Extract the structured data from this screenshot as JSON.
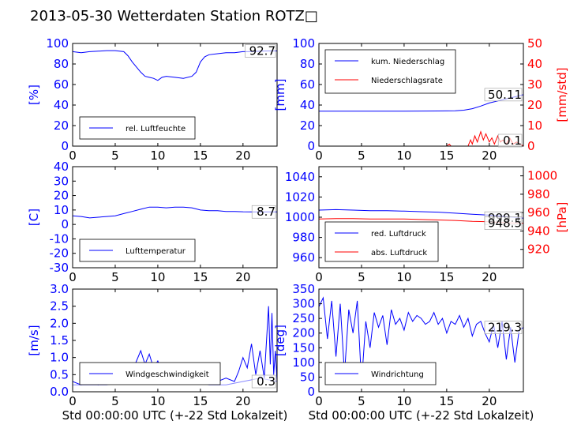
{
  "title": "2013-05-30 Wetterdaten Station ROTZ□",
  "x_label": "Std 00:00:00 UTC (+-22 Std Lokalzeit)",
  "colors": {
    "primary": "#0000ff",
    "secondary": "#ff0000",
    "light": "#8888ff"
  },
  "chart_data": [
    {
      "type": "line",
      "ylabel": "[%]",
      "xlim": [
        0,
        24
      ],
      "ylim": [
        0,
        100
      ],
      "xticks": [
        0,
        5,
        10,
        15,
        20
      ],
      "yticks": [
        0,
        20,
        40,
        60,
        80,
        100
      ],
      "legend": [
        "rel. Luftfeuchte"
      ],
      "legend_position": "lower-left",
      "last_value_label": "92.7",
      "series": [
        {
          "name": "rel. Luftfeuchte",
          "axis": "left",
          "color": "#0000ff",
          "x": [
            0,
            1,
            2,
            3,
            4,
            5,
            6,
            6.5,
            7,
            7.5,
            8,
            8.5,
            9,
            9.5,
            10,
            10.5,
            11,
            12,
            13,
            14,
            14.5,
            15,
            15.5,
            16,
            17,
            18,
            19,
            20,
            21,
            22,
            23,
            24
          ],
          "y": [
            92,
            91,
            92,
            92.5,
            93,
            93,
            92,
            88,
            82,
            77,
            72,
            68,
            67,
            66,
            64,
            67,
            68,
            67,
            66,
            68,
            72,
            82,
            87,
            89,
            90,
            91,
            91,
            92,
            92,
            92.5,
            92.7,
            92.7
          ]
        }
      ]
    },
    {
      "type": "line",
      "ylabel": "[mm]",
      "ylabel_right": "[mm/std]",
      "xlim": [
        0,
        24
      ],
      "ylim": [
        0,
        100
      ],
      "ylim_right": [
        0,
        50
      ],
      "xticks": [
        0,
        5,
        10,
        15,
        20
      ],
      "yticks": [
        0,
        20,
        40,
        60,
        80,
        100
      ],
      "yticks_right": [
        0,
        10,
        20,
        30,
        40,
        50
      ],
      "legend": [
        "kum. Niederschlag",
        "Niederschlagsrate"
      ],
      "legend_position": "upper-left",
      "value_labels": [
        "50.11",
        "0.1"
      ],
      "series": [
        {
          "name": "kum. Niederschlag",
          "axis": "left",
          "color": "#0000ff",
          "x": [
            0,
            5,
            10,
            14,
            16,
            17,
            18,
            19,
            20,
            21,
            22,
            23,
            24
          ],
          "y": [
            34,
            34,
            34,
            34.2,
            34.5,
            35,
            36.5,
            39,
            42,
            44,
            46,
            48,
            50.11
          ]
        },
        {
          "name": "Niederschlagsrate",
          "axis": "right",
          "color": "#ff0000",
          "x": [
            0,
            15,
            15.3,
            15.5,
            16,
            17.5,
            17.8,
            18,
            18.3,
            18.6,
            19,
            19.3,
            19.6,
            20,
            20.3,
            20.6,
            21,
            21.3,
            21.6,
            22,
            22.4,
            22.8,
            23.2,
            24
          ],
          "y": [
            0,
            0,
            1,
            0,
            0,
            0,
            3,
            1,
            5,
            2,
            7,
            3,
            6,
            2,
            4,
            1,
            5,
            2,
            3,
            1,
            4,
            1,
            2,
            0.1
          ]
        }
      ]
    },
    {
      "type": "line",
      "ylabel": "[C]",
      "xlim": [
        0,
        24
      ],
      "ylim": [
        -30,
        40
      ],
      "xticks": [
        0,
        5,
        10,
        15,
        20
      ],
      "yticks": [
        -30,
        -20,
        -10,
        0,
        10,
        20,
        30,
        40
      ],
      "legend": [
        "Lufttemperatur"
      ],
      "legend_position": "lower-left",
      "last_value_label": "8.7",
      "series": [
        {
          "name": "Lufttemperatur",
          "axis": "left",
          "color": "#0000ff",
          "x": [
            0,
            1,
            2,
            3,
            4,
            5,
            6,
            7,
            8,
            9,
            10,
            11,
            12,
            13,
            14,
            15,
            16,
            17,
            18,
            19,
            20,
            21,
            22,
            23,
            24
          ],
          "y": [
            6,
            5.5,
            4.5,
            5,
            5.5,
            6,
            7.5,
            9,
            10.5,
            12,
            12,
            11.5,
            12,
            12,
            11.5,
            10,
            9.5,
            9.5,
            9,
            9,
            8.8,
            8.7,
            8.7,
            8.7,
            8.7
          ]
        }
      ]
    },
    {
      "type": "line",
      "ylabel_right": "[hPa]",
      "xlim": [
        0,
        24
      ],
      "ylim": [
        950,
        1050
      ],
      "ylim_right": [
        900,
        1010
      ],
      "xticks": [
        0,
        5,
        10,
        15,
        20
      ],
      "yticks": [
        960,
        980,
        1000,
        1020,
        1040
      ],
      "yticks_right": [
        920,
        940,
        960,
        980,
        1000
      ],
      "legend": [
        "red. Luftdruck",
        "abs. Luftdruck"
      ],
      "legend_position": "lower-left",
      "value_labels": [
        "999.1",
        "948.5"
      ],
      "series": [
        {
          "name": "red. Luftdruck",
          "axis": "left",
          "color": "#0000ff",
          "x": [
            0,
            2,
            4,
            6,
            8,
            10,
            12,
            14,
            16,
            18,
            20,
            22,
            24
          ],
          "y": [
            1007,
            1007.5,
            1007,
            1006.5,
            1006.5,
            1006,
            1005.5,
            1005,
            1004,
            1003,
            1002,
            1000.5,
            999.1
          ]
        },
        {
          "name": "abs. Luftdruck",
          "axis": "right",
          "color": "#ff0000",
          "x": [
            0,
            2,
            4,
            6,
            8,
            10,
            12,
            14,
            16,
            18,
            20,
            22,
            24
          ],
          "y": [
            953,
            953.5,
            953.5,
            953,
            953,
            953,
            952.5,
            952,
            951.5,
            950.5,
            950,
            949,
            948.5
          ]
        }
      ]
    },
    {
      "type": "line",
      "ylabel": "[m/s]",
      "xlim": [
        0,
        24
      ],
      "ylim": [
        0,
        3.0
      ],
      "xticks": [
        0,
        5,
        10,
        15,
        20
      ],
      "yticks": [
        0.0,
        0.5,
        1.0,
        1.5,
        2.0,
        2.5,
        3.0
      ],
      "legend": [
        "Windgeschwindigkeit"
      ],
      "legend_position": "lower-left",
      "last_value_label": "0.3",
      "series": [
        {
          "name": "Windgeschwindigkeit",
          "axis": "left",
          "color": "#0000ff",
          "x": [
            0,
            1,
            2,
            3,
            4,
            5,
            6,
            7,
            7.5,
            8,
            8.5,
            9,
            9.5,
            10,
            10.5,
            11,
            12,
            13,
            14,
            15,
            16,
            17,
            18,
            19,
            19.5,
            20,
            20.5,
            21,
            21.5,
            22,
            22.5,
            23,
            23.2,
            23.4,
            23.6,
            23.8,
            24
          ],
          "y": [
            0.3,
            0.2,
            0.3,
            0.2,
            0.3,
            0.3,
            0.4,
            0.6,
            0.9,
            1.2,
            0.8,
            1.1,
            0.7,
            0.9,
            0.6,
            0.8,
            0.7,
            0.8,
            0.6,
            0.5,
            0.4,
            0.3,
            0.4,
            0.3,
            0.6,
            1.0,
            0.7,
            1.4,
            0.5,
            1.2,
            0.4,
            2.5,
            0.8,
            2.3,
            0.5,
            1.2,
            0.3
          ]
        },
        {
          "axis": "left",
          "color": "#8888ff",
          "x": [
            0,
            2,
            4,
            6,
            7,
            8,
            9,
            10,
            11,
            12,
            13,
            14,
            15,
            16,
            18,
            20,
            22,
            24
          ],
          "y": [
            0.2,
            0.2,
            0.2,
            0.3,
            0.5,
            0.8,
            0.8,
            0.7,
            0.6,
            0.6,
            0.6,
            0.5,
            0.3,
            0.2,
            0.2,
            0.3,
            0.4,
            0.3
          ]
        }
      ]
    },
    {
      "type": "line",
      "ylabel": "[deg]",
      "xlim": [
        0,
        24
      ],
      "ylim": [
        0,
        350
      ],
      "xticks": [
        0,
        5,
        10,
        15,
        20
      ],
      "yticks": [
        0,
        50,
        100,
        150,
        200,
        250,
        300,
        350
      ],
      "legend": [
        "Windrichtung"
      ],
      "legend_position": "lower-left",
      "last_value_label": "219.3",
      "series": [
        {
          "name": "Windrichtung",
          "axis": "left",
          "color": "#0000ff",
          "x": [
            0,
            0.5,
            1,
            1.5,
            2,
            2.5,
            3,
            3.5,
            4,
            4.5,
            5,
            5.5,
            6,
            6.5,
            7,
            7.5,
            8,
            8.5,
            9,
            9.5,
            10,
            10.5,
            11,
            11.5,
            12,
            12.5,
            13,
            13.5,
            14,
            14.5,
            15,
            15.5,
            16,
            16.5,
            17,
            17.5,
            18,
            18.5,
            19,
            19.5,
            20,
            20.5,
            21,
            21.5,
            22,
            22.5,
            23,
            23.5,
            24
          ],
          "y": [
            290,
            320,
            180,
            310,
            120,
            300,
            60,
            280,
            200,
            310,
            30,
            240,
            150,
            270,
            220,
            260,
            160,
            280,
            230,
            250,
            210,
            270,
            240,
            260,
            250,
            230,
            240,
            270,
            230,
            250,
            200,
            240,
            230,
            260,
            220,
            250,
            190,
            230,
            240,
            200,
            170,
            230,
            150,
            240,
            110,
            220,
            100,
            210,
            219
          ]
        }
      ]
    }
  ]
}
